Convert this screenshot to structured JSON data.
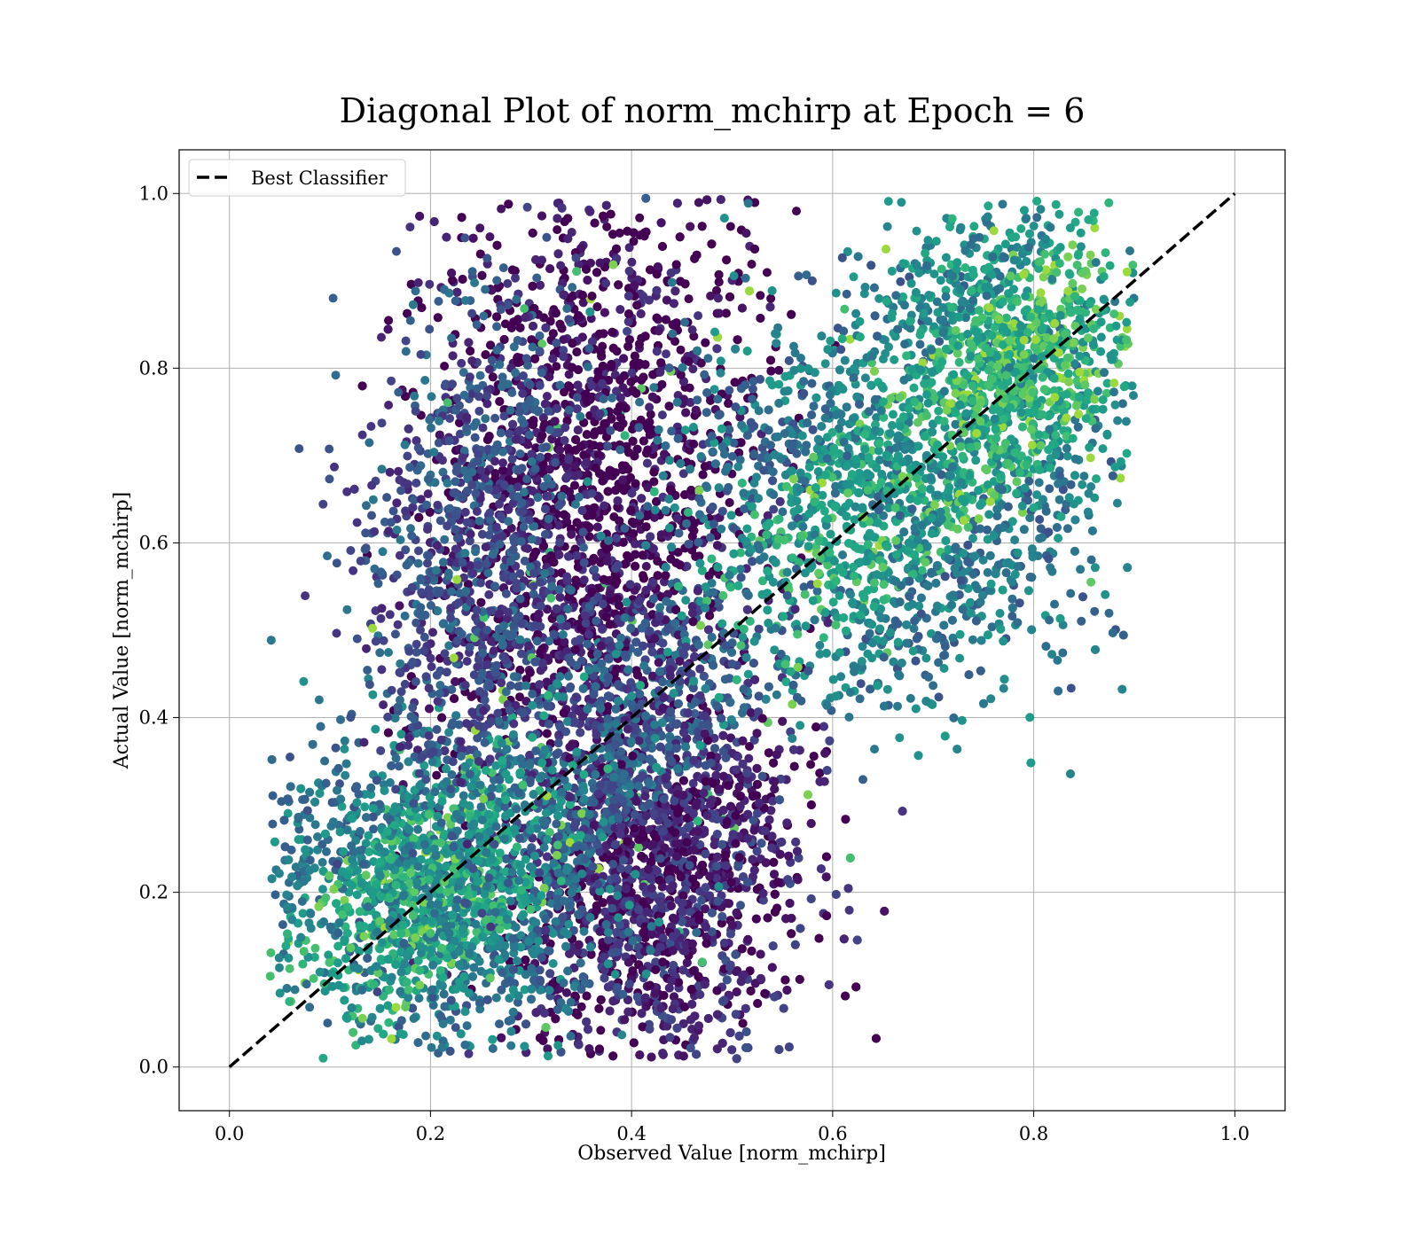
{
  "chart_data": {
    "type": "scatter",
    "title": "Diagonal Plot of norm_mchirp at Epoch = 6",
    "xlabel": "Observed Value [norm_mchirp]",
    "ylabel": "Actual Value [norm_mchirp]",
    "xlim": [
      -0.05,
      1.05
    ],
    "ylim": [
      -0.05,
      1.05
    ],
    "x_ticks": [
      0.0,
      0.2,
      0.4,
      0.6,
      0.8,
      1.0
    ],
    "y_ticks": [
      0.0,
      0.2,
      0.4,
      0.6,
      0.8,
      1.0
    ],
    "x_tick_labels": [
      "0.0",
      "0.2",
      "0.4",
      "0.6",
      "0.8",
      "1.0"
    ],
    "y_tick_labels": [
      "0.0",
      "0.2",
      "0.4",
      "0.6",
      "0.8",
      "1.0"
    ],
    "grid": true,
    "legend": {
      "placement": "upper-left",
      "entries": [
        {
          "label": "Best Classifier",
          "style": "dashed",
          "color": "#000000"
        }
      ]
    },
    "reference_line": {
      "label": "Best Classifier",
      "x": [
        0.0,
        1.0
      ],
      "y": [
        0.0,
        1.0
      ],
      "style": "dashed",
      "color": "#000000"
    },
    "colormap": "viridis",
    "point_clusters": [
      {
        "x_center": 0.37,
        "y_center": 0.6,
        "x_spread": 0.08,
        "y_spread": 0.26,
        "density": "very high",
        "typical_color": "#440154"
      },
      {
        "x_center": 0.42,
        "y_center": 0.25,
        "x_spread": 0.07,
        "y_spread": 0.14,
        "density": "very high",
        "typical_color": "#482475"
      },
      {
        "x_center": 0.2,
        "y_center": 0.2,
        "x_spread": 0.08,
        "y_spread": 0.09,
        "density": "high",
        "typical_color": "#2a788e"
      },
      {
        "x_center": 0.65,
        "y_center": 0.65,
        "x_spread": 0.1,
        "y_spread": 0.12,
        "density": "high",
        "typical_color": "#2a788e"
      },
      {
        "x_center": 0.78,
        "y_center": 0.82,
        "x_spread": 0.06,
        "y_spread": 0.09,
        "density": "medium",
        "typical_color": "#21918c"
      },
      {
        "x_center": 0.25,
        "y_center": 0.55,
        "x_spread": 0.06,
        "y_spread": 0.2,
        "density": "medium",
        "typical_color": "#3b528b"
      }
    ]
  }
}
